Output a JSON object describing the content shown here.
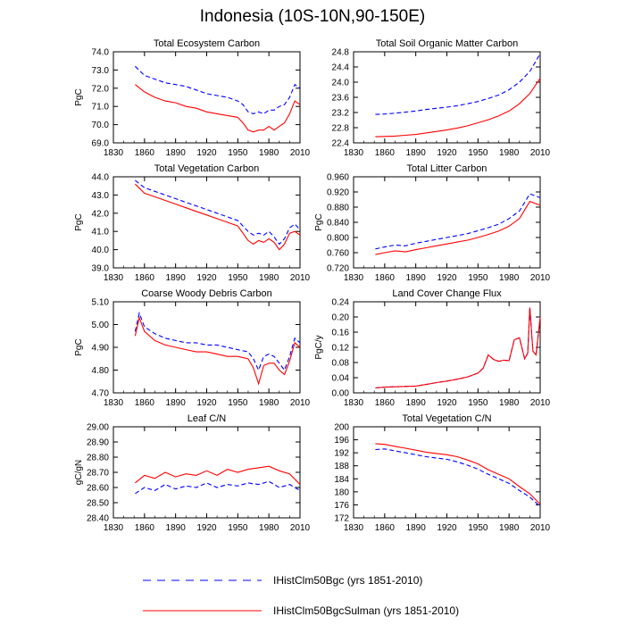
{
  "title": "Indonesia (10S-10N,90-150E)",
  "colors": {
    "bgc": "#0000ff",
    "sulman": "#ff0000"
  },
  "legend": [
    {
      "label": "IHistClm50Bgc (yrs 1851-2010)",
      "style": "dashed",
      "color": "#0000ff"
    },
    {
      "label": "IHistClm50BgcSulman (yrs 1851-2010)",
      "style": "solid",
      "color": "#ff0000"
    }
  ],
  "chart_data": [
    {
      "type": "line",
      "title": "Total Ecosystem Carbon",
      "ylabel": "PgC",
      "xlim": [
        1830,
        2010
      ],
      "xticks": [
        1830,
        1860,
        1890,
        1920,
        1950,
        1980,
        2010
      ],
      "ylim": [
        69.0,
        74.0
      ],
      "yticks": [
        "69.0",
        "70.0",
        "71.0",
        "72.0",
        "73.0",
        "74.0"
      ],
      "x": [
        1851,
        1860,
        1870,
        1880,
        1890,
        1900,
        1910,
        1920,
        1930,
        1940,
        1950,
        1955,
        1960,
        1965,
        1970,
        1975,
        1980,
        1985,
        1990,
        1995,
        2000,
        2005,
        2010
      ],
      "series": [
        {
          "values": [
            73.2,
            72.7,
            72.5,
            72.3,
            72.2,
            72.1,
            71.9,
            71.7,
            71.6,
            71.5,
            71.3,
            71.1,
            70.7,
            70.6,
            70.7,
            70.6,
            70.8,
            70.8,
            71.0,
            71.1,
            71.5,
            72.2,
            72.0
          ],
          "style": "dashed",
          "color": "#0000ff"
        },
        {
          "values": [
            72.2,
            71.8,
            71.5,
            71.3,
            71.2,
            71.0,
            70.9,
            70.7,
            70.6,
            70.5,
            70.4,
            70.1,
            69.7,
            69.6,
            69.7,
            69.7,
            69.9,
            69.7,
            69.9,
            70.1,
            70.6,
            71.3,
            71.1
          ],
          "style": "solid",
          "color": "#ff0000"
        }
      ]
    },
    {
      "type": "line",
      "title": "Total Soil Organic Matter Carbon",
      "ylabel": "",
      "xlim": [
        1830,
        2010
      ],
      "xticks": [
        1830,
        1860,
        1890,
        1920,
        1950,
        1980,
        2010
      ],
      "ylim": [
        22.4,
        24.8
      ],
      "yticks": [
        "22.4",
        "22.8",
        "23.2",
        "23.6",
        "24.0",
        "24.4",
        "24.8"
      ],
      "x": [
        1851,
        1860,
        1870,
        1880,
        1890,
        1900,
        1910,
        1920,
        1930,
        1940,
        1950,
        1960,
        1970,
        1980,
        1990,
        2000,
        2010
      ],
      "series": [
        {
          "values": [
            23.15,
            23.16,
            23.18,
            23.21,
            23.24,
            23.28,
            23.31,
            23.34,
            23.38,
            23.43,
            23.49,
            23.57,
            23.66,
            23.8,
            24.0,
            24.28,
            24.75
          ],
          "style": "dashed",
          "color": "#0000ff"
        },
        {
          "values": [
            22.56,
            22.57,
            22.58,
            22.6,
            22.62,
            22.66,
            22.7,
            22.74,
            22.79,
            22.85,
            22.93,
            23.01,
            23.11,
            23.24,
            23.43,
            23.7,
            24.1
          ],
          "style": "solid",
          "color": "#ff0000"
        }
      ]
    },
    {
      "type": "line",
      "title": "Total Vegetation Carbon",
      "ylabel": "PgC",
      "xlim": [
        1830,
        2010
      ],
      "xticks": [
        1830,
        1860,
        1890,
        1920,
        1950,
        1980,
        2010
      ],
      "ylim": [
        39.0,
        44.0
      ],
      "yticks": [
        "39.0",
        "40.0",
        "41.0",
        "42.0",
        "43.0",
        "44.0"
      ],
      "x": [
        1851,
        1860,
        1870,
        1880,
        1890,
        1900,
        1910,
        1920,
        1930,
        1940,
        1950,
        1955,
        1960,
        1965,
        1970,
        1975,
        1980,
        1985,
        1990,
        1995,
        2000,
        2005,
        2010
      ],
      "series": [
        {
          "values": [
            43.8,
            43.4,
            43.2,
            43.0,
            42.8,
            42.6,
            42.4,
            42.2,
            42.0,
            41.8,
            41.6,
            41.3,
            41.0,
            40.8,
            40.9,
            40.8,
            41.0,
            40.7,
            40.3,
            40.6,
            41.2,
            41.4,
            41.1
          ],
          "style": "dashed",
          "color": "#0000ff"
        },
        {
          "values": [
            43.6,
            43.1,
            42.9,
            42.7,
            42.5,
            42.3,
            42.1,
            41.9,
            41.7,
            41.5,
            41.3,
            40.9,
            40.5,
            40.3,
            40.5,
            40.4,
            40.6,
            40.4,
            40.0,
            40.3,
            40.9,
            41.0,
            40.8
          ],
          "style": "solid",
          "color": "#ff0000"
        }
      ]
    },
    {
      "type": "line",
      "title": "Total Litter Carbon",
      "ylabel": "PgC",
      "xlim": [
        1830,
        2010
      ],
      "xticks": [
        1830,
        1860,
        1890,
        1920,
        1950,
        1980,
        2010
      ],
      "ylim": [
        0.72,
        0.96
      ],
      "yticks": [
        "0.720",
        "0.760",
        "0.800",
        "0.840",
        "0.880",
        "0.920",
        "0.960"
      ],
      "x": [
        1851,
        1860,
        1870,
        1880,
        1890,
        1900,
        1910,
        1920,
        1930,
        1940,
        1950,
        1960,
        1970,
        1980,
        1990,
        2000,
        2010
      ],
      "series": [
        {
          "values": [
            0.77,
            0.775,
            0.78,
            0.778,
            0.785,
            0.79,
            0.795,
            0.8,
            0.805,
            0.81,
            0.818,
            0.826,
            0.835,
            0.85,
            0.87,
            0.915,
            0.905
          ],
          "style": "dashed",
          "color": "#0000ff"
        },
        {
          "values": [
            0.755,
            0.76,
            0.765,
            0.762,
            0.768,
            0.773,
            0.778,
            0.783,
            0.788,
            0.793,
            0.8,
            0.808,
            0.817,
            0.83,
            0.85,
            0.895,
            0.885
          ],
          "style": "solid",
          "color": "#ff0000"
        }
      ]
    },
    {
      "type": "line",
      "title": "Coarse Woody Debris Carbon",
      "ylabel": "PgC",
      "xlim": [
        1830,
        2010
      ],
      "xticks": [
        1830,
        1860,
        1890,
        1920,
        1950,
        1980,
        2010
      ],
      "ylim": [
        4.7,
        5.1
      ],
      "yticks": [
        "4.70",
        "4.80",
        "4.90",
        "5.00",
        "5.10"
      ],
      "x": [
        1851,
        1855,
        1860,
        1870,
        1880,
        1890,
        1900,
        1910,
        1920,
        1930,
        1940,
        1950,
        1960,
        1965,
        1970,
        1975,
        1980,
        1985,
        1990,
        1995,
        2000,
        2005,
        2010
      ],
      "series": [
        {
          "values": [
            4.97,
            5.05,
            4.99,
            4.96,
            4.94,
            4.93,
            4.92,
            4.92,
            4.91,
            4.91,
            4.9,
            4.89,
            4.88,
            4.85,
            4.8,
            4.86,
            4.87,
            4.86,
            4.83,
            4.8,
            4.86,
            4.94,
            4.92
          ],
          "style": "dashed",
          "color": "#0000ff"
        },
        {
          "values": [
            4.95,
            5.03,
            4.97,
            4.93,
            4.91,
            4.9,
            4.89,
            4.88,
            4.88,
            4.87,
            4.86,
            4.86,
            4.85,
            4.81,
            4.74,
            4.82,
            4.83,
            4.83,
            4.8,
            4.78,
            4.84,
            4.92,
            4.9
          ],
          "style": "solid",
          "color": "#ff0000"
        }
      ]
    },
    {
      "type": "line",
      "title": "Land Cover Change Flux",
      "ylabel": "PgC/y",
      "xlim": [
        1830,
        2010
      ],
      "xticks": [
        1830,
        1860,
        1890,
        1920,
        1950,
        1980,
        2010
      ],
      "ylim": [
        0.0,
        0.24
      ],
      "yticks": [
        "0.00",
        "0.04",
        "0.08",
        "0.12",
        "0.16",
        "0.20",
        "0.24"
      ],
      "x": [
        1851,
        1860,
        1870,
        1880,
        1890,
        1900,
        1910,
        1920,
        1930,
        1940,
        1950,
        1955,
        1960,
        1965,
        1970,
        1975,
        1980,
        1985,
        1990,
        1995,
        1998,
        2000,
        2003,
        2006,
        2010
      ],
      "series": [
        {
          "values": [
            0.013,
            0.015,
            0.016,
            0.017,
            0.018,
            0.022,
            0.027,
            0.031,
            0.036,
            0.042,
            0.052,
            0.065,
            0.1,
            0.088,
            0.083,
            0.086,
            0.085,
            0.14,
            0.145,
            0.09,
            0.105,
            0.225,
            0.11,
            0.1,
            0.2
          ],
          "style": "dashed",
          "color": "#0000ff"
        },
        {
          "values": [
            0.013,
            0.015,
            0.016,
            0.017,
            0.018,
            0.022,
            0.027,
            0.031,
            0.036,
            0.042,
            0.052,
            0.065,
            0.1,
            0.088,
            0.083,
            0.086,
            0.085,
            0.14,
            0.145,
            0.09,
            0.105,
            0.225,
            0.11,
            0.1,
            0.2
          ],
          "style": "solid",
          "color": "#ff0000"
        }
      ]
    },
    {
      "type": "line",
      "title": "Leaf C/N",
      "ylabel": "gC/gN",
      "xlim": [
        1830,
        2010
      ],
      "xticks": [
        1830,
        1860,
        1890,
        1920,
        1950,
        1980,
        2010
      ],
      "ylim": [
        28.4,
        29.0
      ],
      "yticks": [
        "28.40",
        "28.50",
        "28.60",
        "28.70",
        "28.80",
        "28.90",
        "29.00"
      ],
      "x": [
        1851,
        1860,
        1870,
        1880,
        1890,
        1900,
        1910,
        1920,
        1930,
        1940,
        1950,
        1960,
        1970,
        1980,
        1990,
        2000,
        2010
      ],
      "series": [
        {
          "values": [
            28.56,
            28.6,
            28.58,
            28.62,
            28.59,
            28.61,
            28.6,
            28.63,
            28.6,
            28.62,
            28.61,
            28.63,
            28.62,
            28.64,
            28.6,
            28.62,
            28.58
          ],
          "style": "dashed",
          "color": "#0000ff"
        },
        {
          "values": [
            28.63,
            28.68,
            28.66,
            28.7,
            28.67,
            28.69,
            28.68,
            28.71,
            28.68,
            28.72,
            28.7,
            28.72,
            28.73,
            28.74,
            28.71,
            28.69,
            28.62
          ],
          "style": "solid",
          "color": "#ff0000"
        }
      ]
    },
    {
      "type": "line",
      "title": "Total Vegetation C/N",
      "ylabel": "",
      "xlim": [
        1830,
        2010
      ],
      "xticks": [
        1830,
        1860,
        1890,
        1920,
        1950,
        1980,
        2010
      ],
      "ylim": [
        172,
        200
      ],
      "yticks": [
        "172",
        "176",
        "180",
        "184",
        "188",
        "192",
        "196",
        "200"
      ],
      "x": [
        1851,
        1860,
        1870,
        1880,
        1890,
        1900,
        1910,
        1920,
        1930,
        1940,
        1950,
        1960,
        1970,
        1980,
        1990,
        2000,
        2010
      ],
      "series": [
        {
          "values": [
            193.0,
            193.2,
            192.6,
            192.0,
            191.4,
            190.8,
            190.4,
            190.0,
            189.2,
            188.2,
            187.0,
            185.4,
            184.0,
            182.6,
            180.4,
            178.4,
            175.5
          ],
          "style": "dashed",
          "color": "#0000ff"
        },
        {
          "values": [
            194.8,
            194.6,
            194.0,
            193.4,
            192.8,
            192.2,
            191.8,
            191.4,
            190.8,
            189.8,
            188.6,
            186.8,
            185.4,
            184.0,
            181.6,
            179.4,
            176.2
          ],
          "style": "solid",
          "color": "#ff0000"
        }
      ]
    }
  ]
}
